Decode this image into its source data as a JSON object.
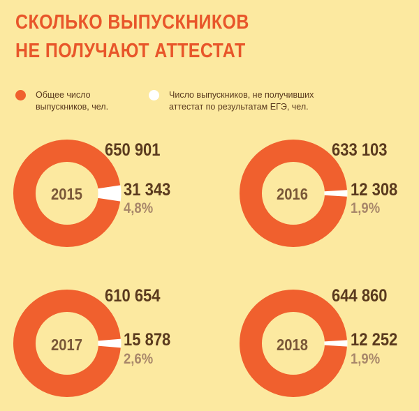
{
  "title": {
    "line1": "СКОЛЬКО ВЫПУСКНИКОВ",
    "line2": "НЕ ПОЛУЧАЮТ АТТЕСТАТ"
  },
  "legend": {
    "total": {
      "label": "Общее число\nвыпускников, чел.",
      "color": "#F0602E"
    },
    "failed": {
      "label": "Число выпускников, не получивших\nаттестат по результатам ЕГЭ, чел.",
      "color": "#FFFFFF"
    }
  },
  "chart_data": [
    {
      "type": "pie",
      "year": "2015",
      "total": 650901,
      "failed": 31343,
      "total_label": "650 901",
      "failed_label": "31 343",
      "pct_label": "4,8%"
    },
    {
      "type": "pie",
      "year": "2016",
      "total": 633103,
      "failed": 12308,
      "total_label": "633 103",
      "failed_label": "12 308",
      "pct_label": "1,9%"
    },
    {
      "type": "pie",
      "year": "2017",
      "total": 610654,
      "failed": 15878,
      "total_label": "610 654",
      "failed_label": "15 878",
      "pct_label": "2,6%"
    },
    {
      "type": "pie",
      "year": "2018",
      "total": 644860,
      "failed": 12252,
      "total_label": "644 860",
      "failed_label": "12 252",
      "pct_label": "1,9%"
    }
  ]
}
